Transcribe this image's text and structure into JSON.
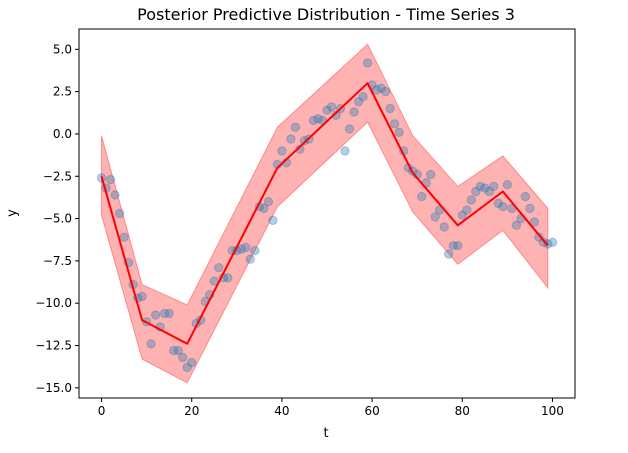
{
  "chart_data": {
    "type": "line",
    "title": "Posterior Predictive Distribution - Time Series 3",
    "xlabel": "t",
    "ylabel": "y",
    "xlim": [
      -5,
      105
    ],
    "ylim": [
      -15.6,
      6.2
    ],
    "xticks": [
      0,
      20,
      40,
      60,
      80,
      100
    ],
    "yticks": [
      5.0,
      2.5,
      0.0,
      -2.5,
      -5.0,
      -7.5,
      -10.0,
      -12.5,
      -15.0
    ],
    "ytick_labels": [
      "5.0",
      "2.5",
      "0.0",
      "−2.5",
      "−5.0",
      "−7.5",
      "−10.0",
      "−12.5",
      "−15.0"
    ],
    "grid": false,
    "colors": {
      "band": "#ff0000",
      "mean": "#ff0000",
      "points": "#1f77b4"
    },
    "series": [
      {
        "kind": "band",
        "x": [
          0,
          9,
          19,
          39,
          59,
          69,
          79,
          89,
          99
        ],
        "lower": [
          -4.8,
          -13.3,
          -14.7,
          -4.3,
          0.7,
          -4.6,
          -7.7,
          -5.7,
          -9.1
        ],
        "upper": [
          -0.1,
          -8.9,
          -10.1,
          0.4,
          5.3,
          -0.1,
          -3.1,
          -1.3,
          -4.4
        ]
      },
      {
        "kind": "mean",
        "x": [
          0,
          9,
          19,
          39,
          59,
          69,
          79,
          89,
          99
        ],
        "y": [
          -2.5,
          -11.0,
          -12.4,
          -2.0,
          3.0,
          -2.3,
          -5.4,
          -3.4,
          -6.6
        ]
      },
      {
        "kind": "observations",
        "points": [
          [
            0,
            -2.6
          ],
          [
            1,
            -3.2
          ],
          [
            2,
            -2.7
          ],
          [
            3,
            -3.6
          ],
          [
            4,
            -4.7
          ],
          [
            5,
            -6.1
          ],
          [
            6,
            -7.6
          ],
          [
            7,
            -8.9
          ],
          [
            8,
            -9.7
          ],
          [
            9,
            -9.6
          ],
          [
            10,
            -11.1
          ],
          [
            11,
            -12.4
          ],
          [
            12,
            -10.7
          ],
          [
            13,
            -11.4
          ],
          [
            14,
            -10.6
          ],
          [
            15,
            -10.6
          ],
          [
            16,
            -12.8
          ],
          [
            17,
            -12.8
          ],
          [
            18,
            -13.2
          ],
          [
            19,
            -13.8
          ],
          [
            20,
            -13.5
          ],
          [
            21,
            -11.2
          ],
          [
            22,
            -11.0
          ],
          [
            23,
            -9.9
          ],
          [
            24,
            -9.5
          ],
          [
            25,
            -8.7
          ],
          [
            26,
            -7.9
          ],
          [
            27,
            -8.5
          ],
          [
            28,
            -8.5
          ],
          [
            29,
            -6.9
          ],
          [
            30,
            -6.9
          ],
          [
            31,
            -6.8
          ],
          [
            32,
            -6.7
          ],
          [
            33,
            -7.4
          ],
          [
            34,
            -6.9
          ],
          [
            35,
            -4.3
          ],
          [
            36,
            -4.4
          ],
          [
            37,
            -4.0
          ],
          [
            38,
            -5.1
          ],
          [
            39,
            -1.8
          ],
          [
            40,
            -1.0
          ],
          [
            41,
            -1.7
          ],
          [
            42,
            -0.3
          ],
          [
            43,
            0.4
          ],
          [
            44,
            -0.9
          ],
          [
            45,
            -0.4
          ],
          [
            46,
            -0.3
          ],
          [
            47,
            0.8
          ],
          [
            48,
            0.9
          ],
          [
            49,
            0.8
          ],
          [
            50,
            1.4
          ],
          [
            51,
            1.6
          ],
          [
            52,
            1.1
          ],
          [
            53,
            1.5
          ],
          [
            54,
            -1.0
          ],
          [
            55,
            0.3
          ],
          [
            56,
            1.3
          ],
          [
            57,
            1.9
          ],
          [
            58,
            2.2
          ],
          [
            59,
            4.2
          ],
          [
            60,
            2.9
          ],
          [
            61,
            2.6
          ],
          [
            62,
            2.7
          ],
          [
            63,
            2.5
          ],
          [
            64,
            1.5
          ],
          [
            65,
            0.6
          ],
          [
            66,
            0.1
          ],
          [
            67,
            -1.0
          ],
          [
            68,
            -2.0
          ],
          [
            69,
            -2.2
          ],
          [
            70,
            -2.4
          ],
          [
            71,
            -3.7
          ],
          [
            72,
            -2.9
          ],
          [
            73,
            -2.4
          ],
          [
            74,
            -4.9
          ],
          [
            75,
            -4.5
          ],
          [
            76,
            -5.5
          ],
          [
            77,
            -7.1
          ],
          [
            78,
            -6.6
          ],
          [
            79,
            -6.6
          ],
          [
            80,
            -4.8
          ],
          [
            81,
            -4.5
          ],
          [
            82,
            -3.9
          ],
          [
            83,
            -3.4
          ],
          [
            84,
            -3.1
          ],
          [
            85,
            -3.2
          ],
          [
            86,
            -3.4
          ],
          [
            87,
            -3.1
          ],
          [
            88,
            -4.1
          ],
          [
            89,
            -4.3
          ],
          [
            90,
            -3.0
          ],
          [
            91,
            -4.4
          ],
          [
            92,
            -5.4
          ],
          [
            93,
            -5.0
          ],
          [
            94,
            -3.7
          ],
          [
            95,
            -4.4
          ],
          [
            96,
            -5.2
          ],
          [
            97,
            -6.1
          ],
          [
            98,
            -6.4
          ],
          [
            99,
            -6.5
          ],
          [
            100,
            -6.4
          ]
        ]
      }
    ]
  }
}
